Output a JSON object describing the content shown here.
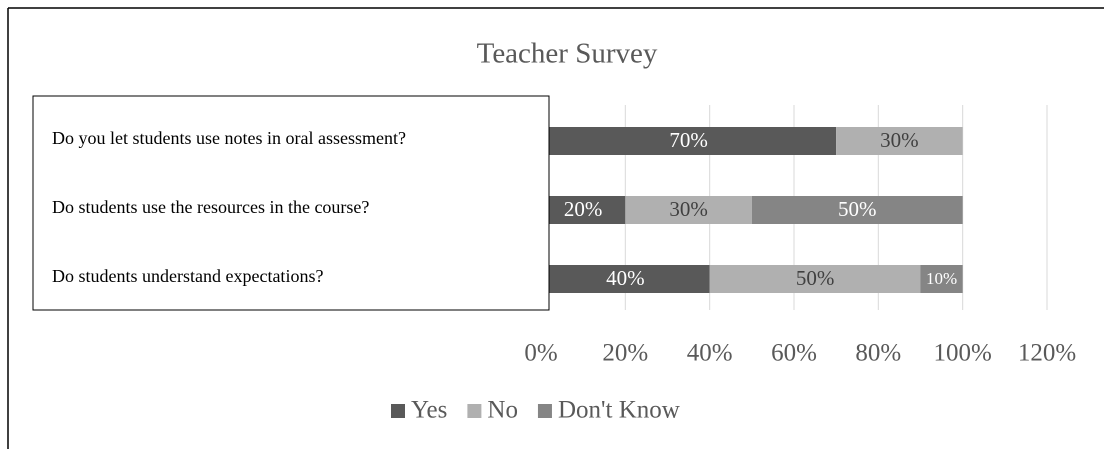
{
  "chart_data": {
    "type": "stacked_bar_horizontal",
    "title": "Teacher Survey",
    "categories": [
      "Do you let students use notes in oral assessment?",
      "Do students use the resources in the course?",
      "Do students understand expectations?"
    ],
    "series": [
      {
        "name": "Yes",
        "color": "#595959",
        "values": [
          70,
          20,
          40
        ],
        "value_labels": [
          "70%",
          "20%",
          "40%"
        ]
      },
      {
        "name": "No",
        "color": "#b0b0b0",
        "values": [
          30,
          30,
          50
        ],
        "value_labels": [
          "30%",
          "30%",
          "50%"
        ]
      },
      {
        "name": "Don't Know",
        "color": "#858585",
        "values": [
          0,
          50,
          10
        ],
        "value_labels": [
          null,
          "50%",
          "10%"
        ]
      }
    ],
    "xlim": [
      0,
      120
    ],
    "xticks": [
      {
        "value": 0,
        "label": "0%"
      },
      {
        "value": 20,
        "label": "20%"
      },
      {
        "value": 40,
        "label": "40%"
      },
      {
        "value": 60,
        "label": "60%"
      },
      {
        "value": 80,
        "label": "80%"
      },
      {
        "value": 100,
        "label": "100%"
      },
      {
        "value": 120,
        "label": "120%"
      }
    ],
    "grid": true,
    "legend": "bottom"
  }
}
